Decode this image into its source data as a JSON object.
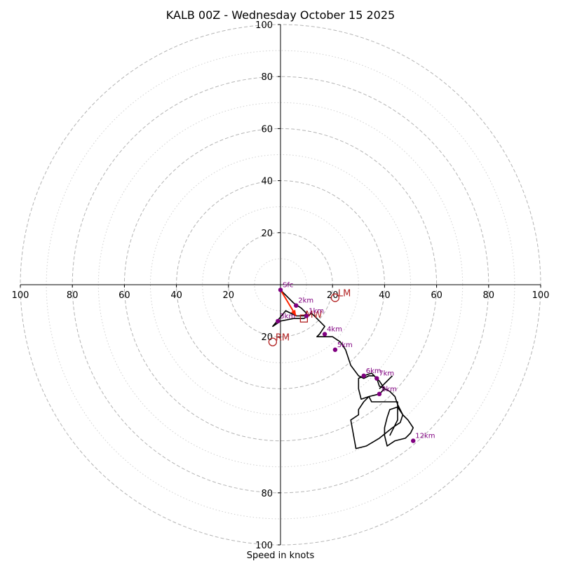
{
  "chart_data": {
    "type": "hodograph",
    "title": "KALB 00Z - Wednesday October 15 2025",
    "xlabel": "Speed in knots",
    "range": [
      -100,
      100
    ],
    "ring_major": [
      20,
      40,
      60,
      80,
      100
    ],
    "ring_minor": [
      10,
      30,
      50,
      70,
      90
    ],
    "x_tick_labels": [
      "100",
      "80",
      "60",
      "40",
      "20",
      "20",
      "40",
      "60",
      "80",
      "100"
    ],
    "x_tick_values": [
      -100,
      -80,
      -60,
      -40,
      -20,
      20,
      40,
      60,
      80,
      100
    ],
    "y_tick_labels_top": [
      "20",
      "40",
      "60",
      "80",
      "100"
    ],
    "y_tick_labels_bottom": [
      "20",
      "80",
      "100"
    ],
    "y_tick_values_bottom": [
      -20,
      -80,
      -100
    ],
    "trace_u": [
      0,
      3,
      5,
      8,
      10,
      9,
      6,
      2,
      -3,
      0,
      5,
      9,
      12,
      14,
      17,
      15,
      14,
      20,
      23,
      25,
      27,
      30,
      32,
      34,
      36,
      38,
      40,
      38,
      34,
      31,
      30,
      30,
      32,
      35,
      37,
      38,
      40,
      42,
      44,
      45,
      47,
      49,
      51,
      50,
      48,
      44,
      41,
      40,
      40,
      41,
      42,
      45,
      47,
      46,
      43,
      38,
      33,
      29,
      27,
      30,
      30,
      32,
      34,
      35,
      40,
      45,
      45,
      42
    ],
    "trace_v": [
      -2,
      -5,
      -7,
      -9,
      -11,
      -12,
      -12,
      -10,
      -16,
      -14,
      -13,
      -13,
      -11,
      -13,
      -16,
      -19,
      -20,
      -20,
      -22,
      -25,
      -31,
      -35,
      -36,
      -35,
      -35,
      -37,
      -40,
      -42,
      -43,
      -44,
      -40,
      -36,
      -35,
      -34,
      -36,
      -39,
      -40,
      -41,
      -43,
      -46,
      -50,
      -52,
      -55,
      -57,
      -59,
      -60,
      -62,
      -58,
      -55,
      -51,
      -48,
      -47,
      -50,
      -53,
      -55,
      -59,
      -62,
      -63,
      -52,
      -50,
      -48,
      -45,
      -43,
      -45,
      -45,
      -45,
      -52,
      -58
    ],
    "trace_closing": [
      [
        40,
        -38
      ],
      [
        43,
        -35
      ],
      [
        38,
        -40
      ]
    ],
    "height_markers": [
      {
        "label": "Sfc",
        "u": 0,
        "v": -2
      },
      {
        "label": "1km",
        "u": 10,
        "v": -12
      },
      {
        "label": "2km",
        "u": 6,
        "v": -8
      },
      {
        "label": "3km",
        "u": -1,
        "v": -14
      },
      {
        "label": "4km",
        "u": 17,
        "v": -19
      },
      {
        "label": "5km",
        "u": 21,
        "v": -25
      },
      {
        "label": "6km",
        "u": 32,
        "v": -35
      },
      {
        "label": "7km",
        "u": 37,
        "v": -36
      },
      {
        "label": "8km",
        "u": 38,
        "v": -42
      },
      {
        "label": "12km",
        "u": 51,
        "v": -60
      }
    ],
    "storm_motion": [
      {
        "label": "LM",
        "u": 21,
        "v": -5
      },
      {
        "label": "RM",
        "u": -3,
        "v": -22
      }
    ],
    "mean_wind": {
      "label": "MW",
      "u": 9,
      "v": -13
    },
    "shear_vector": {
      "from_u": 0,
      "from_v": -2,
      "to_u": 6,
      "to_v": -12
    },
    "colors": {
      "ring": "#b4b4b4",
      "trace": "#000000",
      "marker": "#800080",
      "storm": "#b22222",
      "shear": "#ff2400"
    }
  }
}
